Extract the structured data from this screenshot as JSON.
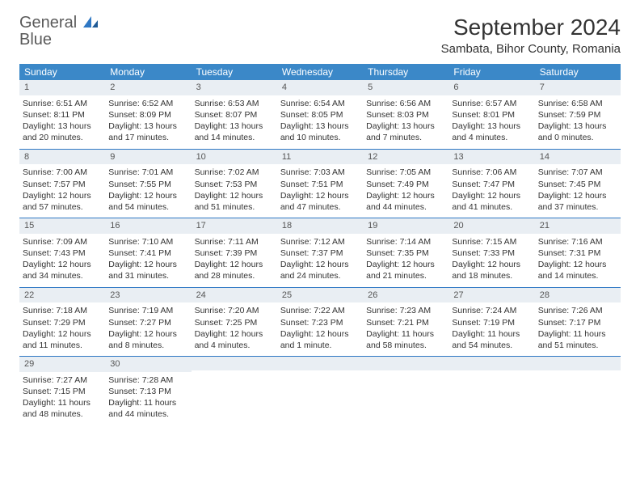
{
  "logo": {
    "line1": "General",
    "line2": "Blue"
  },
  "title": "September 2024",
  "location": "Sambata, Bihor County, Romania",
  "header_bg": "#3b88c8",
  "daynum_bg": "#e9eef3",
  "border_color": "#2f78c4",
  "day_names": [
    "Sunday",
    "Monday",
    "Tuesday",
    "Wednesday",
    "Thursday",
    "Friday",
    "Saturday"
  ],
  "days": [
    {
      "n": "1",
      "sunrise": "6:51 AM",
      "sunset": "8:11 PM",
      "dl": "13 hours and 20 minutes."
    },
    {
      "n": "2",
      "sunrise": "6:52 AM",
      "sunset": "8:09 PM",
      "dl": "13 hours and 17 minutes."
    },
    {
      "n": "3",
      "sunrise": "6:53 AM",
      "sunset": "8:07 PM",
      "dl": "13 hours and 14 minutes."
    },
    {
      "n": "4",
      "sunrise": "6:54 AM",
      "sunset": "8:05 PM",
      "dl": "13 hours and 10 minutes."
    },
    {
      "n": "5",
      "sunrise": "6:56 AM",
      "sunset": "8:03 PM",
      "dl": "13 hours and 7 minutes."
    },
    {
      "n": "6",
      "sunrise": "6:57 AM",
      "sunset": "8:01 PM",
      "dl": "13 hours and 4 minutes."
    },
    {
      "n": "7",
      "sunrise": "6:58 AM",
      "sunset": "7:59 PM",
      "dl": "13 hours and 0 minutes."
    },
    {
      "n": "8",
      "sunrise": "7:00 AM",
      "sunset": "7:57 PM",
      "dl": "12 hours and 57 minutes."
    },
    {
      "n": "9",
      "sunrise": "7:01 AM",
      "sunset": "7:55 PM",
      "dl": "12 hours and 54 minutes."
    },
    {
      "n": "10",
      "sunrise": "7:02 AM",
      "sunset": "7:53 PM",
      "dl": "12 hours and 51 minutes."
    },
    {
      "n": "11",
      "sunrise": "7:03 AM",
      "sunset": "7:51 PM",
      "dl": "12 hours and 47 minutes."
    },
    {
      "n": "12",
      "sunrise": "7:05 AM",
      "sunset": "7:49 PM",
      "dl": "12 hours and 44 minutes."
    },
    {
      "n": "13",
      "sunrise": "7:06 AM",
      "sunset": "7:47 PM",
      "dl": "12 hours and 41 minutes."
    },
    {
      "n": "14",
      "sunrise": "7:07 AM",
      "sunset": "7:45 PM",
      "dl": "12 hours and 37 minutes."
    },
    {
      "n": "15",
      "sunrise": "7:09 AM",
      "sunset": "7:43 PM",
      "dl": "12 hours and 34 minutes."
    },
    {
      "n": "16",
      "sunrise": "7:10 AM",
      "sunset": "7:41 PM",
      "dl": "12 hours and 31 minutes."
    },
    {
      "n": "17",
      "sunrise": "7:11 AM",
      "sunset": "7:39 PM",
      "dl": "12 hours and 28 minutes."
    },
    {
      "n": "18",
      "sunrise": "7:12 AM",
      "sunset": "7:37 PM",
      "dl": "12 hours and 24 minutes."
    },
    {
      "n": "19",
      "sunrise": "7:14 AM",
      "sunset": "7:35 PM",
      "dl": "12 hours and 21 minutes."
    },
    {
      "n": "20",
      "sunrise": "7:15 AM",
      "sunset": "7:33 PM",
      "dl": "12 hours and 18 minutes."
    },
    {
      "n": "21",
      "sunrise": "7:16 AM",
      "sunset": "7:31 PM",
      "dl": "12 hours and 14 minutes."
    },
    {
      "n": "22",
      "sunrise": "7:18 AM",
      "sunset": "7:29 PM",
      "dl": "12 hours and 11 minutes."
    },
    {
      "n": "23",
      "sunrise": "7:19 AM",
      "sunset": "7:27 PM",
      "dl": "12 hours and 8 minutes."
    },
    {
      "n": "24",
      "sunrise": "7:20 AM",
      "sunset": "7:25 PM",
      "dl": "12 hours and 4 minutes."
    },
    {
      "n": "25",
      "sunrise": "7:22 AM",
      "sunset": "7:23 PM",
      "dl": "12 hours and 1 minute."
    },
    {
      "n": "26",
      "sunrise": "7:23 AM",
      "sunset": "7:21 PM",
      "dl": "11 hours and 58 minutes."
    },
    {
      "n": "27",
      "sunrise": "7:24 AM",
      "sunset": "7:19 PM",
      "dl": "11 hours and 54 minutes."
    },
    {
      "n": "28",
      "sunrise": "7:26 AM",
      "sunset": "7:17 PM",
      "dl": "11 hours and 51 minutes."
    },
    {
      "n": "29",
      "sunrise": "7:27 AM",
      "sunset": "7:15 PM",
      "dl": "11 hours and 48 minutes."
    },
    {
      "n": "30",
      "sunrise": "7:28 AM",
      "sunset": "7:13 PM",
      "dl": "11 hours and 44 minutes."
    }
  ],
  "labels": {
    "sunrise": "Sunrise:",
    "sunset": "Sunset:",
    "daylight": "Daylight:"
  }
}
